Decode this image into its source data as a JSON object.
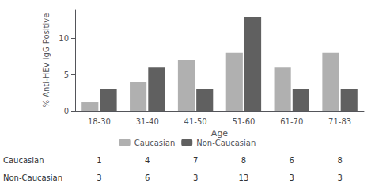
{
  "chart_data": {
    "type": "bar",
    "categories": [
      "18-30",
      "31-40",
      "41-50",
      "51-60",
      "61-70",
      "71-83"
    ],
    "series": [
      {
        "name": "Caucasian",
        "color": "#b0b0b0",
        "values": [
          1.2,
          4.0,
          7.0,
          8.0,
          6.0,
          8.0
        ]
      },
      {
        "name": "Non-Caucasian",
        "color": "#606060",
        "values": [
          3.0,
          6.0,
          3.0,
          13.0,
          3.0,
          3.0
        ]
      }
    ],
    "xlabel": "Age",
    "ylabel": "% Anti-HEV IgG Positive",
    "ylim": [
      0,
      14
    ],
    "yticks": [
      0,
      5,
      10
    ],
    "grid": false,
    "legend": "bottom",
    "table": [
      {
        "label": "Caucasian",
        "values": [
          1,
          4,
          7,
          8,
          6,
          8
        ]
      },
      {
        "label": "Non-Caucasian",
        "values": [
          3,
          6,
          3,
          13,
          3,
          3
        ]
      }
    ]
  }
}
